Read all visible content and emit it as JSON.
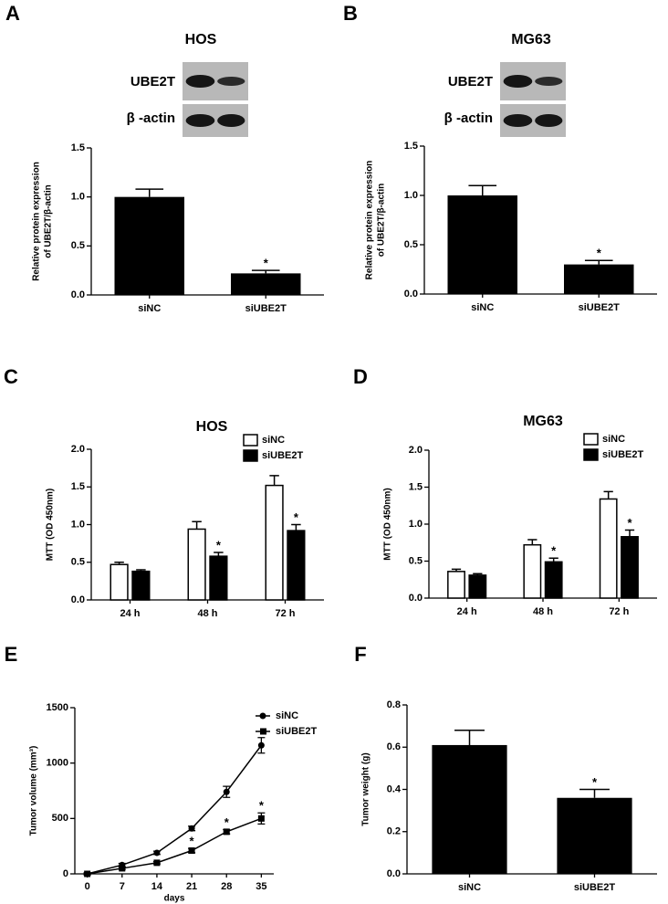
{
  "chart_data": [
    {
      "type": "bar",
      "panel": "A",
      "title": "HOS",
      "blot_labels": [
        "UBE2T",
        "β -actin"
      ],
      "categories": [
        "siNC",
        "siUBE2T"
      ],
      "values": [
        1.0,
        0.22
      ],
      "errors": [
        0.08,
        0.03
      ],
      "color": "#000000",
      "y_label": [
        "Relative protein expression",
        "of UBE2T/β-actin"
      ],
      "ylim": [
        0,
        1.5
      ],
      "yticks": [
        {
          "value": 0,
          "label": "0.0"
        },
        {
          "value": 0.5,
          "label": "0.5"
        },
        {
          "value": 1,
          "label": "1.0"
        },
        {
          "value": 1.5,
          "label": "1.5"
        }
      ],
      "annotations": [
        {
          "text": "*",
          "category": "siUBE2T"
        }
      ]
    },
    {
      "type": "bar",
      "panel": "B",
      "title": "MG63",
      "blot_labels": [
        "UBE2T",
        "β -actin"
      ],
      "categories": [
        "siNC",
        "siUBE2T"
      ],
      "values": [
        1.0,
        0.3
      ],
      "errors": [
        0.1,
        0.04
      ],
      "color": "#000000",
      "y_label": [
        "Relative protein expression",
        "of UBE2T/β-actin"
      ],
      "ylim": [
        0,
        1.5
      ],
      "yticks": [
        {
          "value": 0,
          "label": "0.0"
        },
        {
          "value": 0.5,
          "label": "0.5"
        },
        {
          "value": 1,
          "label": "1.0"
        },
        {
          "value": 1.5,
          "label": "1.5"
        }
      ],
      "annotations": [
        {
          "text": "*",
          "category": "siUBE2T"
        }
      ]
    },
    {
      "type": "bar",
      "panel": "C",
      "title": "HOS",
      "categories": [
        "24 h",
        "48 h",
        "72 h"
      ],
      "series": [
        {
          "name": "siNC",
          "color": "#ffffff",
          "values": [
            0.47,
            0.94,
            1.52
          ],
          "errors": [
            0.03,
            0.1,
            0.13
          ]
        },
        {
          "name": "siUBE2T",
          "color": "#000000",
          "values": [
            0.38,
            0.58,
            0.92
          ],
          "errors": [
            0.02,
            0.05,
            0.08
          ]
        }
      ],
      "y_label": "MTT (OD 450nm)",
      "legend": "top-right",
      "ylim": [
        0,
        2.0
      ],
      "yticks": [
        {
          "value": 0,
          "label": "0.0"
        },
        {
          "value": 0.5,
          "label": "0.5"
        },
        {
          "value": 1,
          "label": "1.0"
        },
        {
          "value": 1.5,
          "label": "1.5"
        },
        {
          "value": 2,
          "label": "2.0"
        }
      ],
      "annotations": [
        {
          "text": "*",
          "series": "siUBE2T",
          "category": "48 h"
        },
        {
          "text": "*",
          "series": "siUBE2T",
          "category": "72 h"
        }
      ]
    },
    {
      "type": "bar",
      "panel": "D",
      "title": "MG63",
      "categories": [
        "24 h",
        "48 h",
        "72 h"
      ],
      "series": [
        {
          "name": "siNC",
          "color": "#ffffff",
          "values": [
            0.36,
            0.72,
            1.34
          ],
          "errors": [
            0.03,
            0.07,
            0.1
          ]
        },
        {
          "name": "siUBE2T",
          "color": "#000000",
          "values": [
            0.31,
            0.49,
            0.83
          ],
          "errors": [
            0.02,
            0.05,
            0.09
          ]
        }
      ],
      "y_label": "MTT (OD 450nm)",
      "legend": "top-right",
      "ylim": [
        0,
        2.0
      ],
      "yticks": [
        {
          "value": 0,
          "label": "0.0"
        },
        {
          "value": 0.5,
          "label": "0.5"
        },
        {
          "value": 1,
          "label": "1.0"
        },
        {
          "value": 1.5,
          "label": "1.5"
        },
        {
          "value": 2,
          "label": "2.0"
        }
      ],
      "annotations": [
        {
          "text": "*",
          "series": "siUBE2T",
          "category": "48 h"
        },
        {
          "text": "*",
          "series": "siUBE2T",
          "category": "72 h"
        }
      ]
    },
    {
      "type": "line",
      "panel": "E",
      "x": [
        0,
        7,
        14,
        21,
        28,
        35
      ],
      "series": [
        {
          "name": "siNC",
          "color": "#000000",
          "marker": "circle",
          "values": [
            0,
            80,
            190,
            410,
            740,
            1160
          ],
          "errors": [
            10,
            15,
            15,
            20,
            50,
            70
          ]
        },
        {
          "name": "siUBE2T",
          "color": "#000000",
          "marker": "square",
          "values": [
            0,
            50,
            100,
            210,
            380,
            500
          ],
          "errors": [
            5,
            10,
            10,
            20,
            20,
            50
          ]
        }
      ],
      "x_label": "days",
      "y_label": "Tumor volume (mm³)",
      "legend": "top-right",
      "xlim": [
        -2.5,
        37.5
      ],
      "xticks": [
        0,
        7,
        14,
        21,
        28,
        35
      ],
      "ylim": [
        0,
        1500
      ],
      "yticks": [
        0,
        500,
        1000,
        1500
      ],
      "annotations": [
        {
          "text": "*",
          "series": "siUBE2T",
          "x": 21
        },
        {
          "text": "*",
          "series": "siUBE2T",
          "x": 28
        },
        {
          "text": "*",
          "series": "siUBE2T",
          "x": 35
        }
      ]
    },
    {
      "type": "bar",
      "panel": "F",
      "categories": [
        "siNC",
        "siUBE2T"
      ],
      "values": [
        0.61,
        0.36
      ],
      "errors": [
        0.07,
        0.04
      ],
      "color": "#000000",
      "y_label": "Tumor weight (g)",
      "ylim": [
        0,
        0.8
      ],
      "yticks": [
        {
          "value": 0,
          "label": "0.0"
        },
        {
          "value": 0.2,
          "label": "0.2"
        },
        {
          "value": 0.4,
          "label": "0.4"
        },
        {
          "value": 0.6,
          "label": "0.6"
        },
        {
          "value": 0.8,
          "label": "0.8"
        }
      ],
      "annotations": [
        {
          "text": "*",
          "category": "siUBE2T"
        }
      ]
    }
  ]
}
